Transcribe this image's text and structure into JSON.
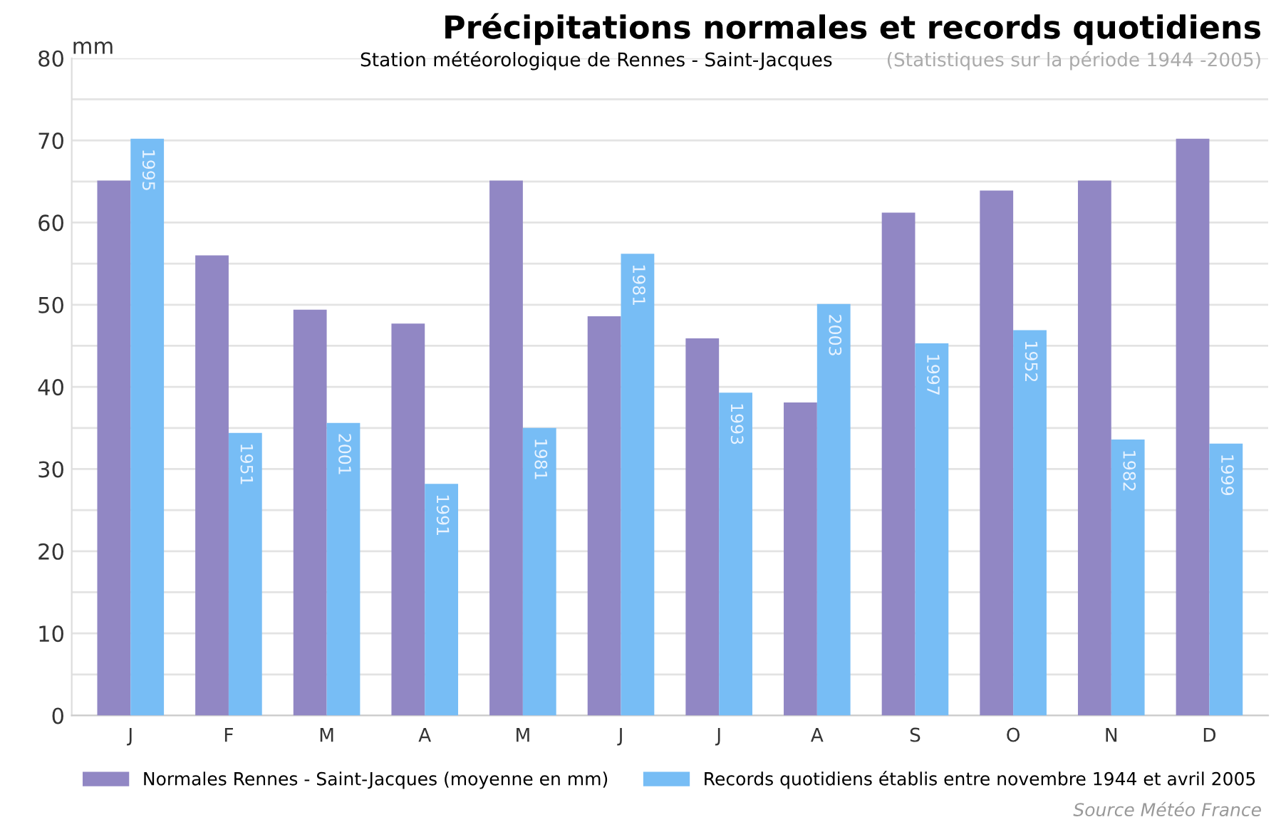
{
  "chart_data": {
    "type": "bar",
    "title": "Précipitations normales et records quotidiens",
    "subtitle": "Station météorologique de Rennes - Saint-Jacques",
    "ylabel": "mm",
    "categories": [
      "J",
      "F",
      "M",
      "A",
      "M",
      "J",
      "J",
      "A",
      "S",
      "O",
      "N",
      "D"
    ],
    "series": [
      {
        "name": "Normales Rennes - Saint-Jacques (moyenne en mm)",
        "color": "#9187c4",
        "values": [
          65.1,
          56.0,
          49.4,
          47.7,
          65.1,
          48.6,
          45.9,
          38.1,
          61.2,
          63.9,
          65.1,
          70.2
        ]
      },
      {
        "name": "Records quotidiens établis entre novembre 1944 et avril 2005",
        "color": "#77bdf5",
        "values": [
          70.2,
          34.4,
          35.6,
          28.2,
          35.0,
          56.2,
          39.3,
          50.1,
          45.3,
          46.9,
          33.6,
          33.1
        ]
      }
    ],
    "ylim": [
      0,
      80
    ],
    "yticks": [
      0,
      {
        "value": 5,
        "label": null
      },
      10,
      {
        "value": 15,
        "label": null
      },
      20,
      {
        "value": 25,
        "label": null
      },
      30,
      {
        "value": 35,
        "label": null
      },
      40,
      {
        "value": 45,
        "label": null
      },
      50,
      {
        "value": 55,
        "label": null
      },
      60,
      {
        "value": 65,
        "label": null
      },
      70,
      {
        "value": 75,
        "label": null
      },
      80
    ],
    "grid": "y",
    "legend": "bottom",
    "annotations": [
      "(Statistiques sur la période 1944 -2005)",
      "Source Météo France",
      "1995",
      "1951",
      "2001",
      "1991",
      "1981",
      "1981",
      "1993",
      "2003",
      "1997",
      "1952",
      "1982",
      "1999"
    ]
  }
}
